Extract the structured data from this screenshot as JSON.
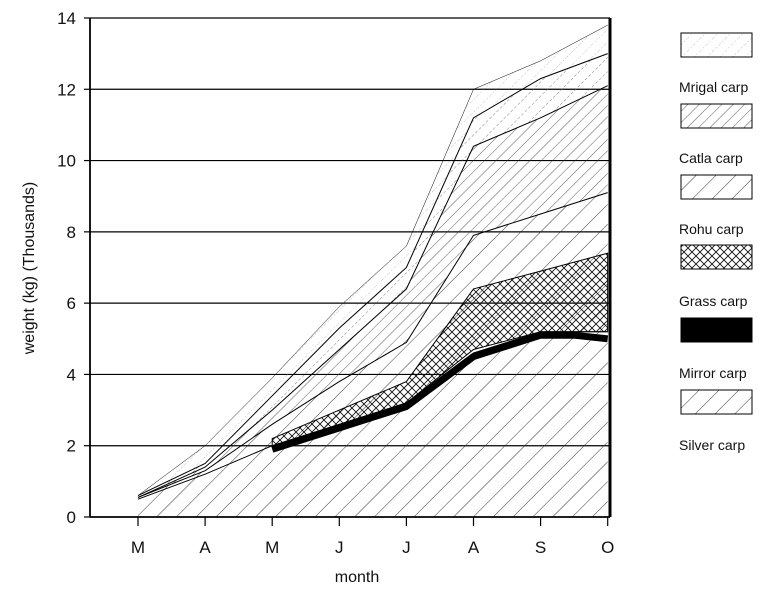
{
  "chart_data": {
    "type": "area",
    "title": "",
    "xlabel": "month",
    "ylabel": "weight (kg) (Thousands)",
    "ylim": [
      0,
      14
    ],
    "yticks": [
      "0",
      "2",
      "4",
      "6",
      "8",
      "10",
      "12",
      "14"
    ],
    "categories": [
      "M",
      "A",
      "M",
      "J",
      "J",
      "A",
      "S",
      "O"
    ],
    "grid": true,
    "legend_position": "right",
    "legend": [
      "",
      "Mrigal carp",
      "Catla carp",
      "Rohu carp",
      "Grass carp",
      "Mirror carp",
      "Silver carp"
    ],
    "stacked_totals": [
      {
        "name": "Silver carp",
        "x": [
          0,
          1,
          2,
          3,
          4,
          5,
          6,
          7
        ],
        "y": [
          0.5,
          1.2,
          2.0,
          2.6,
          3.2,
          4.6,
          5.2,
          5.2
        ]
      },
      {
        "name": "Grass carp",
        "x": [
          2.0,
          2.5,
          3,
          3.5,
          4,
          4.5,
          5,
          5.5,
          6,
          6.5,
          7
        ],
        "y": [
          1.9,
          2.2,
          2.5,
          2.8,
          3.1,
          3.8,
          4.5,
          4.8,
          5.1,
          5.1,
          5.0
        ]
      },
      {
        "name": "Mirror carp",
        "x": [
          0,
          1,
          2,
          3,
          4,
          5,
          6,
          7
        ],
        "y": [
          0.5,
          1.2,
          2.0,
          2.6,
          3.2,
          4.7,
          5.2,
          5.2
        ]
      },
      {
        "name": "Rohu carp",
        "x": [
          2,
          3,
          4,
          5,
          6,
          7
        ],
        "y": [
          2.2,
          3.0,
          3.8,
          6.4,
          6.9,
          7.4
        ]
      },
      {
        "name": "Catla carp",
        "x": [
          0,
          1,
          2,
          3,
          4,
          5,
          6,
          7
        ],
        "y": [
          0.55,
          1.3,
          2.6,
          3.8,
          4.9,
          7.9,
          8.5,
          9.1
        ]
      },
      {
        "name": "Mrigal carp",
        "x": [
          0,
          1,
          2,
          3,
          4,
          5,
          6,
          7
        ],
        "y": [
          0.55,
          1.4,
          3.0,
          4.7,
          6.4,
          10.4,
          11.2,
          12.1
        ]
      },
      {
        "name": "",
        "x": [
          0,
          1,
          2,
          3,
          4,
          5,
          6,
          7
        ],
        "y": [
          0.6,
          1.5,
          3.4,
          5.3,
          7.0,
          11.2,
          12.3,
          13.0
        ]
      },
      {
        "name": "",
        "x": [
          0,
          1,
          2,
          3,
          4,
          5,
          6,
          7
        ],
        "y": [
          0.6,
          2.0,
          3.9,
          5.9,
          7.6,
          12.0,
          12.8,
          13.8
        ]
      }
    ]
  }
}
